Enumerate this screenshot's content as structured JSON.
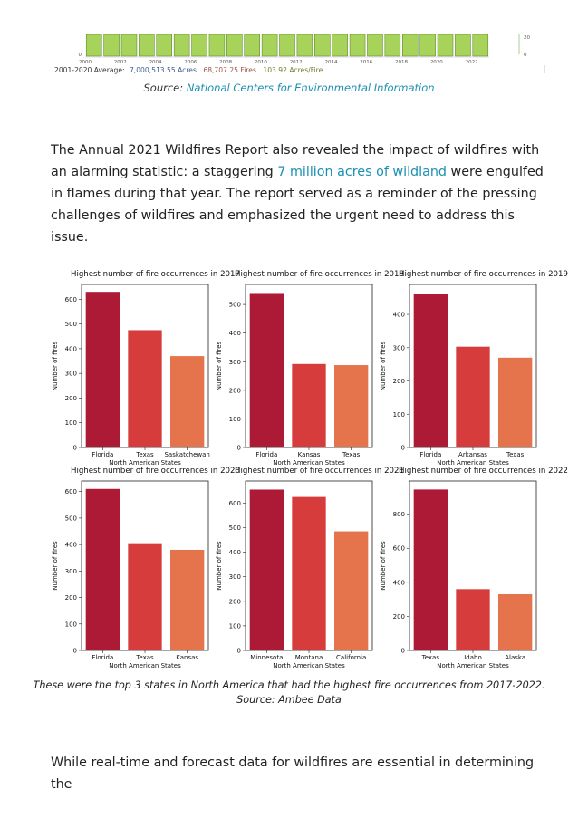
{
  "top_chart": {
    "year_ticks": [
      "2000",
      "2002",
      "2004",
      "2006",
      "2008",
      "2010",
      "2012",
      "2014",
      "2016",
      "2018",
      "2020",
      "2022"
    ],
    "left_min": "0",
    "right_ticks": [
      "20",
      "0"
    ],
    "average_label": "2001-2020 Average:",
    "acres": "7,000,513.55 Acres",
    "fires": "68,707.25 Fires",
    "acres_per_fire": "103.92 Acres/Fire",
    "bar_color": "#a8d35a",
    "acres_color": "#3d5a8a",
    "fires_color": "#a0524a",
    "apf_color": "#6f7a2a"
  },
  "source_line": {
    "prefix": "Source:",
    "link": "National Centers for Environmental Information"
  },
  "paragraph1": {
    "before": "The Annual 2021 Wildfires Report also revealed the impact of wildfires with an alarming statistic: a staggering ",
    "link": "7 million acres of wildland",
    "after": " were engulfed in flames during that year. The report served as a reminder of the pressing challenges of wildfires and emphasized the urgent need to address this issue."
  },
  "chart_data": [
    {
      "type": "bar",
      "title": "Highest number of fire occurrences in 2017",
      "categories": [
        "Florida",
        "Texas",
        "Saskatchewan"
      ],
      "values": [
        630,
        475,
        370
      ],
      "ylim": [
        0,
        660
      ],
      "yticks": [
        0,
        100,
        200,
        300,
        400,
        500,
        600
      ],
      "xlabel": "North American States",
      "ylabel": "Number of fires"
    },
    {
      "type": "bar",
      "title": "Highest number of fire occurrences in 2018",
      "categories": [
        "Florida",
        "Kansas",
        "Texas"
      ],
      "values": [
        540,
        292,
        288
      ],
      "ylim": [
        0,
        570
      ],
      "yticks": [
        0,
        100,
        200,
        300,
        400,
        500
      ],
      "xlabel": "North American States",
      "ylabel": "Number of fires"
    },
    {
      "type": "bar",
      "title": "Highest number of fire occurrences in 2019",
      "categories": [
        "Florida",
        "Arkansas",
        "Texas"
      ],
      "values": [
        460,
        303,
        270
      ],
      "ylim": [
        0,
        490
      ],
      "yticks": [
        0,
        100,
        200,
        300,
        400
      ],
      "xlabel": "North American States",
      "ylabel": "Number of fires"
    },
    {
      "type": "bar",
      "title": "Highest number of fire occurrences in 2020",
      "categories": [
        "Florida",
        "Texas",
        "Kansas"
      ],
      "values": [
        610,
        405,
        380
      ],
      "ylim": [
        0,
        640
      ],
      "yticks": [
        0,
        100,
        200,
        300,
        400,
        500,
        600
      ],
      "xlabel": "North American States",
      "ylabel": "Number of fires"
    },
    {
      "type": "bar",
      "title": "Highest number of fire occurrences in 2021",
      "categories": [
        "Minnesota",
        "Montana",
        "California"
      ],
      "values": [
        655,
        625,
        485
      ],
      "ylim": [
        0,
        690
      ],
      "yticks": [
        0,
        100,
        200,
        300,
        400,
        500,
        600
      ],
      "xlabel": "North American States",
      "ylabel": "Number of fires"
    },
    {
      "type": "bar",
      "title": "Highest number of fire occurrences in 2022",
      "categories": [
        "Texas",
        "Idaho",
        "Alaska"
      ],
      "values": [
        945,
        360,
        330
      ],
      "ylim": [
        0,
        995
      ],
      "yticks": [
        0,
        200,
        400,
        600,
        800
      ],
      "xlabel": "North American States",
      "ylabel": "Number of fires"
    }
  ],
  "bar_colors": [
    "#ad1a36",
    "#d63c3b",
    "#e5734b"
  ],
  "caption": {
    "line1": "These were the top 3 states in North America that had the highest fire occurrences from 2017-2022.",
    "line2": "Source: Ambee Data"
  },
  "paragraph2": "While real-time and forecast data for wildfires are essential in determining the"
}
